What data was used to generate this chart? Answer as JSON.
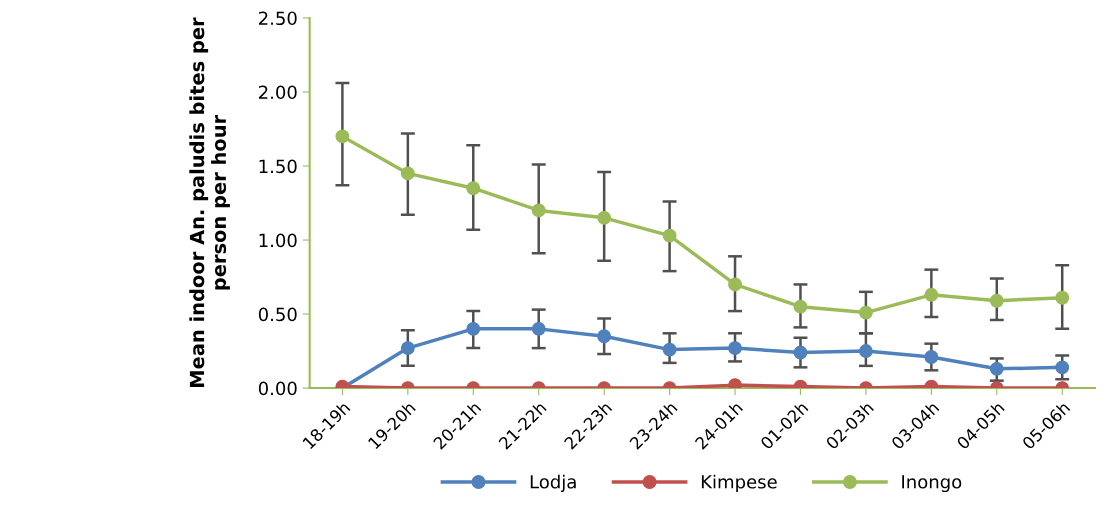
{
  "chart_data": {
    "type": "line",
    "ylabel": "Mean indoor An. paludis bites per\nperson per hour",
    "categories": [
      "18-19h",
      "19-20h",
      "20-21h",
      "21-22h",
      "22-23h",
      "23-24h",
      "24-01h",
      "01-02h",
      "02-03h",
      "03-04h",
      "04-05h",
      "05-06h"
    ],
    "series": [
      {
        "name": "Lodja",
        "color": "#4f81bd",
        "values": [
          0.0,
          0.27,
          0.4,
          0.4,
          0.35,
          0.26,
          0.27,
          0.24,
          0.25,
          0.21,
          0.13,
          0.14
        ],
        "errors": [
          null,
          [
            0.15,
            0.39
          ],
          [
            0.27,
            0.52
          ],
          [
            0.27,
            0.53
          ],
          [
            0.23,
            0.47
          ],
          [
            0.17,
            0.37
          ],
          [
            0.18,
            0.37
          ],
          [
            0.14,
            0.34
          ],
          [
            0.15,
            0.37
          ],
          [
            0.12,
            0.3
          ],
          [
            0.05,
            0.2
          ],
          [
            0.06,
            0.22
          ]
        ]
      },
      {
        "name": "Kimpese",
        "color": "#c0504d",
        "values": [
          0.01,
          0.0,
          0.0,
          0.0,
          0.0,
          0.0,
          0.02,
          0.01,
          0.0,
          0.01,
          0.0,
          0.0
        ]
      },
      {
        "name": "Inongo",
        "color": "#9bbb59",
        "values": [
          1.7,
          1.45,
          1.35,
          1.2,
          1.15,
          1.03,
          0.7,
          0.55,
          0.51,
          0.63,
          0.59,
          0.61
        ],
        "errors": [
          [
            1.37,
            2.06
          ],
          [
            1.17,
            1.72
          ],
          [
            1.07,
            1.64
          ],
          [
            0.91,
            1.51
          ],
          [
            0.86,
            1.46
          ],
          [
            0.79,
            1.26
          ],
          [
            0.52,
            0.89
          ],
          [
            0.41,
            0.7
          ],
          [
            0.37,
            0.65
          ],
          [
            0.48,
            0.8
          ],
          [
            0.46,
            0.74
          ],
          [
            0.4,
            0.83
          ]
        ]
      }
    ],
    "ylim": [
      0,
      2.5
    ],
    "yticks": [
      {
        "value": 0,
        "label": "0.00"
      },
      {
        "value": 0.5,
        "label": "0.50"
      },
      {
        "value": 1,
        "label": "1.00"
      },
      {
        "value": 1.5,
        "label": "1.50"
      },
      {
        "value": 2,
        "label": "2.00"
      },
      {
        "value": 2.5,
        "label": "2.50"
      }
    ],
    "grid": false,
    "legend": "bottom",
    "marker": "circle",
    "line_style": "solid"
  }
}
